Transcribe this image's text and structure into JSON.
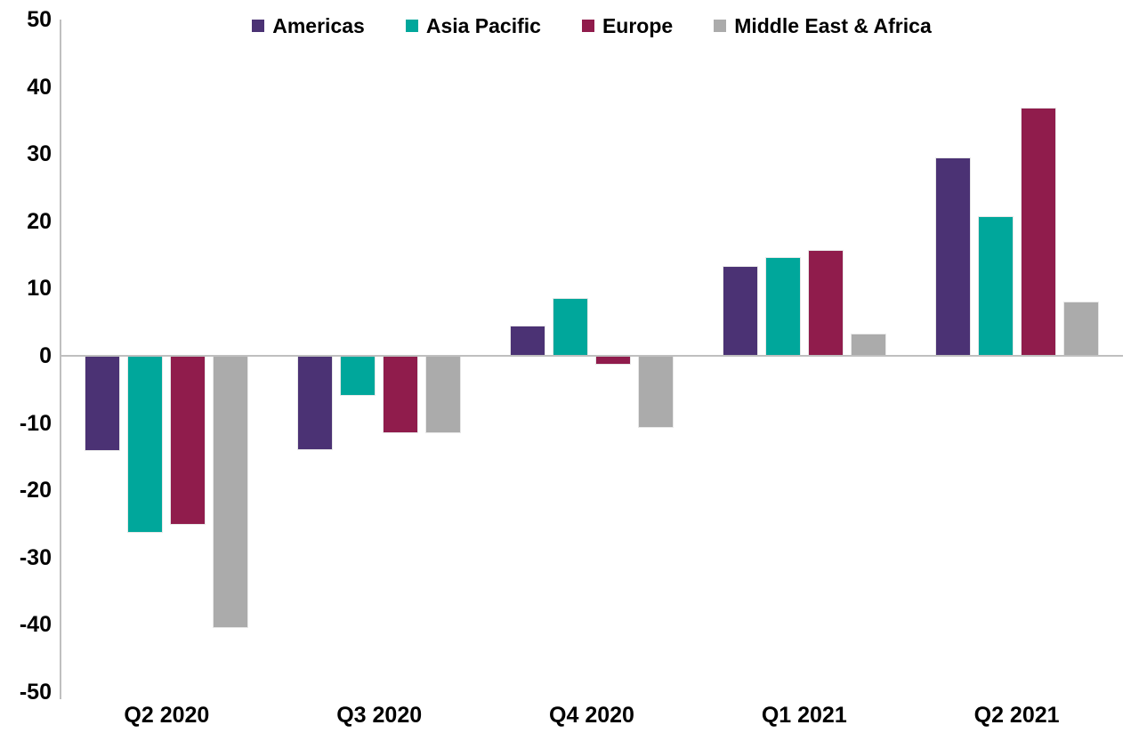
{
  "chart_data": {
    "type": "bar",
    "title": "",
    "xlabel": "",
    "ylabel": "",
    "categories": [
      "Q2 2020",
      "Q3 2020",
      "Q4 2020",
      "Q1 2021",
      "Q2 2021"
    ],
    "series": [
      {
        "name": "Americas",
        "color": "#4B3274",
        "values": [
          -13.9,
          -13.8,
          4.3,
          13.2,
          29.4
        ]
      },
      {
        "name": "Asia Pacific",
        "color": "#00A79B",
        "values": [
          -26.0,
          -5.7,
          8.4,
          14.6,
          20.6
        ]
      },
      {
        "name": "Europe",
        "color": "#901C4C",
        "values": [
          -24.9,
          -11.2,
          -1.1,
          15.6,
          36.8
        ]
      },
      {
        "name": "Middle East & Africa",
        "color": "#ABABAB",
        "values": [
          -40.2,
          -11.3,
          -10.4,
          3.2,
          7.9
        ]
      }
    ],
    "ylim": [
      -50,
      50
    ],
    "yticks": [
      50,
      40,
      30,
      20,
      10,
      0,
      -10,
      -20,
      -30,
      -40,
      -50
    ],
    "legend_position": "top",
    "grid": false,
    "axis_color": "#BFBFBF",
    "text_color": "#000000",
    "background_color": "#FFFFFF"
  }
}
